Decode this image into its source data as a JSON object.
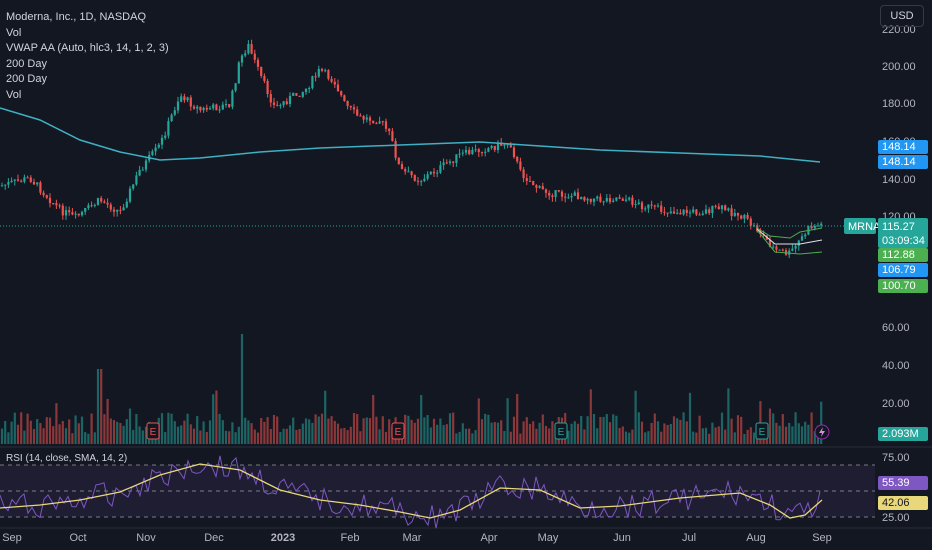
{
  "legend": {
    "title": "Moderna, Inc., 1D, NASDAQ",
    "vol": "Vol",
    "vwap": "VWAP AA (Auto, hlc3, 14, 1, 2, 3)",
    "ma1": "200 Day",
    "ma2": "200 Day",
    "vol2": "Vol"
  },
  "currency_button": "USD",
  "price_axis": {
    "ticks": [
      "220.00",
      "200.00",
      "180.00",
      "160.00",
      "140.00",
      "120.00",
      "60.00",
      "40.00",
      "20.00"
    ],
    "badges": {
      "ma": [
        "148.14",
        "148.14"
      ],
      "symbol": "MRNA",
      "last": "115.27",
      "countdown": "03:09:34",
      "vwap_upper": "112.88",
      "vwap_mid": "106.79",
      "vwap_lower": "100.70",
      "volume": "2.093M"
    }
  },
  "rsi": {
    "label": "RSI (14, close, SMA, 14, 2)",
    "ticks": [
      "75.00",
      "25.00"
    ],
    "badges": {
      "rsi": "55.39",
      "sma": "42.06"
    }
  },
  "time_axis": [
    "Sep",
    "Oct",
    "Nov",
    "Dec",
    "2023",
    "Feb",
    "Mar",
    "Apr",
    "May",
    "Jun",
    "Jul",
    "Aug",
    "Sep"
  ],
  "colors": {
    "background": "#131722",
    "up": "#26a69a",
    "down": "#ef5350",
    "ma_line": "#3fb0c3",
    "vwap": "#4caf50",
    "rsi": "#7e57c2",
    "rsi_ma": "#e8d77b",
    "badge_ma": "#2196f3",
    "badge_green": "#4caf50",
    "badge_blue": "#2196f3"
  },
  "earnings_marker": "E",
  "flash_icon": "lightning-icon"
}
